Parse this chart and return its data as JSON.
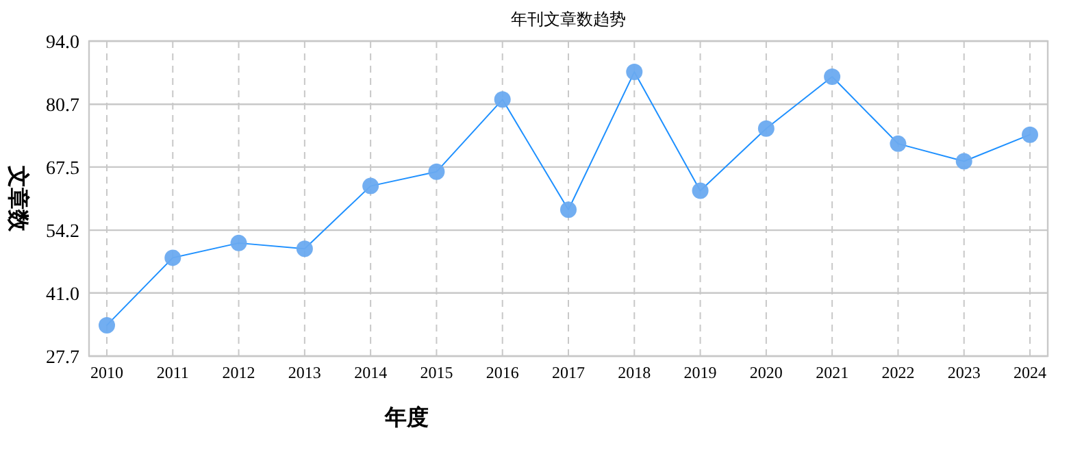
{
  "chart_data": {
    "type": "line",
    "title": "年刊文章数趋势",
    "xlabel": "年度",
    "ylabel": "文章数",
    "categories": [
      "2010",
      "2011",
      "2012",
      "2013",
      "2014",
      "2015",
      "2016",
      "2017",
      "2018",
      "2019",
      "2020",
      "2021",
      "2022",
      "2023",
      "2024"
    ],
    "series": [
      {
        "color": "#1e90ff",
        "values": [
          34.2,
          48.4,
          51.5,
          50.3,
          63.5,
          66.5,
          81.7,
          58.5,
          87.5,
          62.5,
          75.6,
          86.5,
          72.4,
          68.7,
          74.3
        ]
      }
    ],
    "ylim": [
      27.7,
      94.0
    ],
    "yticks": [
      {
        "value": 27.7,
        "label": "27.7"
      },
      {
        "value": 41.0,
        "label": "41.0"
      },
      {
        "value": 54.2,
        "label": "54.2"
      },
      {
        "value": 67.5,
        "label": "67.5"
      },
      {
        "value": 80.7,
        "label": "80.7"
      },
      {
        "value": 94.0,
        "label": "94.0"
      }
    ],
    "grid": true,
    "marker": "circle",
    "line_style": "solid"
  }
}
